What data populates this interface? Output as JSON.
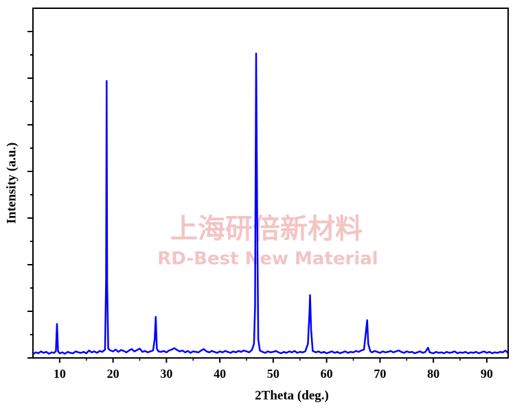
{
  "chart_data": {
    "type": "line",
    "x_label": "2Theta (deg.)",
    "y_label": "Intensity (a.u.)",
    "watermark": [
      "上海研倍新材料",
      "RD-Best New Material"
    ],
    "color": "#0000ff",
    "xlim": [
      5,
      94
    ],
    "xticks": [
      10,
      20,
      30,
      40,
      50,
      60,
      70,
      80,
      90
    ],
    "ylim": [
      0,
      750
    ],
    "yticks": [
      0,
      50,
      100,
      150,
      200,
      250,
      300,
      350,
      400,
      450,
      500,
      550,
      600,
      650,
      700
    ],
    "x": [
      5,
      5.5,
      6,
      6.5,
      7,
      7.5,
      8,
      8.5,
      9,
      9.3,
      9.5,
      9.7,
      10,
      10.5,
      11,
      11.5,
      12,
      12.5,
      13,
      13.5,
      14,
      14.5,
      15,
      15.5,
      16,
      16.5,
      17,
      17.5,
      18,
      18.5,
      18.7,
      18.8,
      18.9,
      19.1,
      19.5,
      20,
      20.5,
      21,
      21.5,
      22,
      22.5,
      23,
      23.5,
      24,
      24.5,
      25,
      25.5,
      26,
      26.5,
      27,
      27.5,
      27.8,
      28,
      28.2,
      28.5,
      29,
      29.5,
      30,
      30.5,
      31,
      31.5,
      32,
      32.5,
      33,
      33.5,
      34,
      34.5,
      35,
      35.5,
      36,
      36.5,
      37,
      37.5,
      38,
      38.5,
      39,
      39.5,
      40,
      40.5,
      41,
      41.5,
      42,
      42.5,
      43,
      43.5,
      44,
      44.5,
      45,
      45.5,
      46,
      46.4,
      46.6,
      46.7,
      46.8,
      47,
      47.2,
      47.5,
      48,
      48.5,
      49,
      49.5,
      50,
      50.5,
      51,
      51.5,
      52,
      52.5,
      53,
      53.5,
      54,
      54.5,
      55,
      55.5,
      56,
      56.5,
      56.8,
      56.9,
      57.1,
      57.4,
      58,
      58.5,
      59,
      59.5,
      60,
      60.5,
      61,
      61.5,
      62,
      62.5,
      63,
      63.5,
      64,
      64.5,
      65,
      65.5,
      66,
      66.5,
      67,
      67.4,
      67.6,
      67.8,
      68.2,
      68.5,
      69,
      69.5,
      70,
      70.5,
      71,
      71.5,
      72,
      72.5,
      73,
      73.5,
      74,
      74.5,
      75,
      75.5,
      76,
      76.5,
      77,
      77.5,
      78,
      78.5,
      79,
      79.3,
      80,
      80.5,
      81,
      81.5,
      82,
      82.5,
      83,
      83.5,
      84,
      84.5,
      85,
      85.5,
      86,
      86.5,
      87,
      87.5,
      88,
      88.5,
      89,
      89.5,
      90,
      90.5,
      91,
      91.5,
      92,
      92.5,
      93,
      93.5,
      94
    ],
    "values": [
      8,
      12,
      10,
      14,
      11,
      13,
      9,
      12,
      11,
      15,
      73,
      14,
      10,
      12,
      9,
      13,
      11,
      10,
      14,
      12,
      11,
      13,
      10,
      16,
      12,
      14,
      11,
      15,
      13,
      18,
      170,
      594,
      160,
      20,
      16,
      14,
      18,
      13,
      17,
      15,
      12,
      16,
      19,
      14,
      17,
      20,
      13,
      15,
      12,
      14,
      16,
      40,
      88,
      20,
      14,
      13,
      15,
      12,
      16,
      18,
      21,
      17,
      14,
      16,
      12,
      15,
      11,
      14,
      13,
      12,
      16,
      19,
      14,
      12,
      15,
      13,
      11,
      14,
      12,
      15,
      13,
      11,
      14,
      12,
      15,
      13,
      16,
      14,
      12,
      17,
      30,
      110,
      390,
      653,
      300,
      40,
      16,
      13,
      11,
      14,
      12,
      13,
      15,
      12,
      10,
      13,
      11,
      14,
      12,
      15,
      11,
      13,
      12,
      14,
      30,
      100,
      135,
      60,
      15,
      12,
      14,
      11,
      13,
      10,
      12,
      14,
      11,
      13,
      10,
      12,
      14,
      11,
      13,
      12,
      15,
      13,
      16,
      18,
      60,
      81,
      30,
      14,
      12,
      15,
      13,
      11,
      14,
      12,
      13,
      15,
      12,
      14,
      16,
      13,
      11,
      14,
      12,
      13,
      10,
      12,
      14,
      11,
      13,
      22,
      12,
      10,
      13,
      11,
      12,
      10,
      13,
      11,
      12,
      14,
      10,
      12,
      11,
      13,
      10,
      12,
      11,
      13,
      10,
      12,
      14,
      11,
      13,
      10,
      12,
      11,
      13,
      12,
      16,
      10
    ]
  }
}
